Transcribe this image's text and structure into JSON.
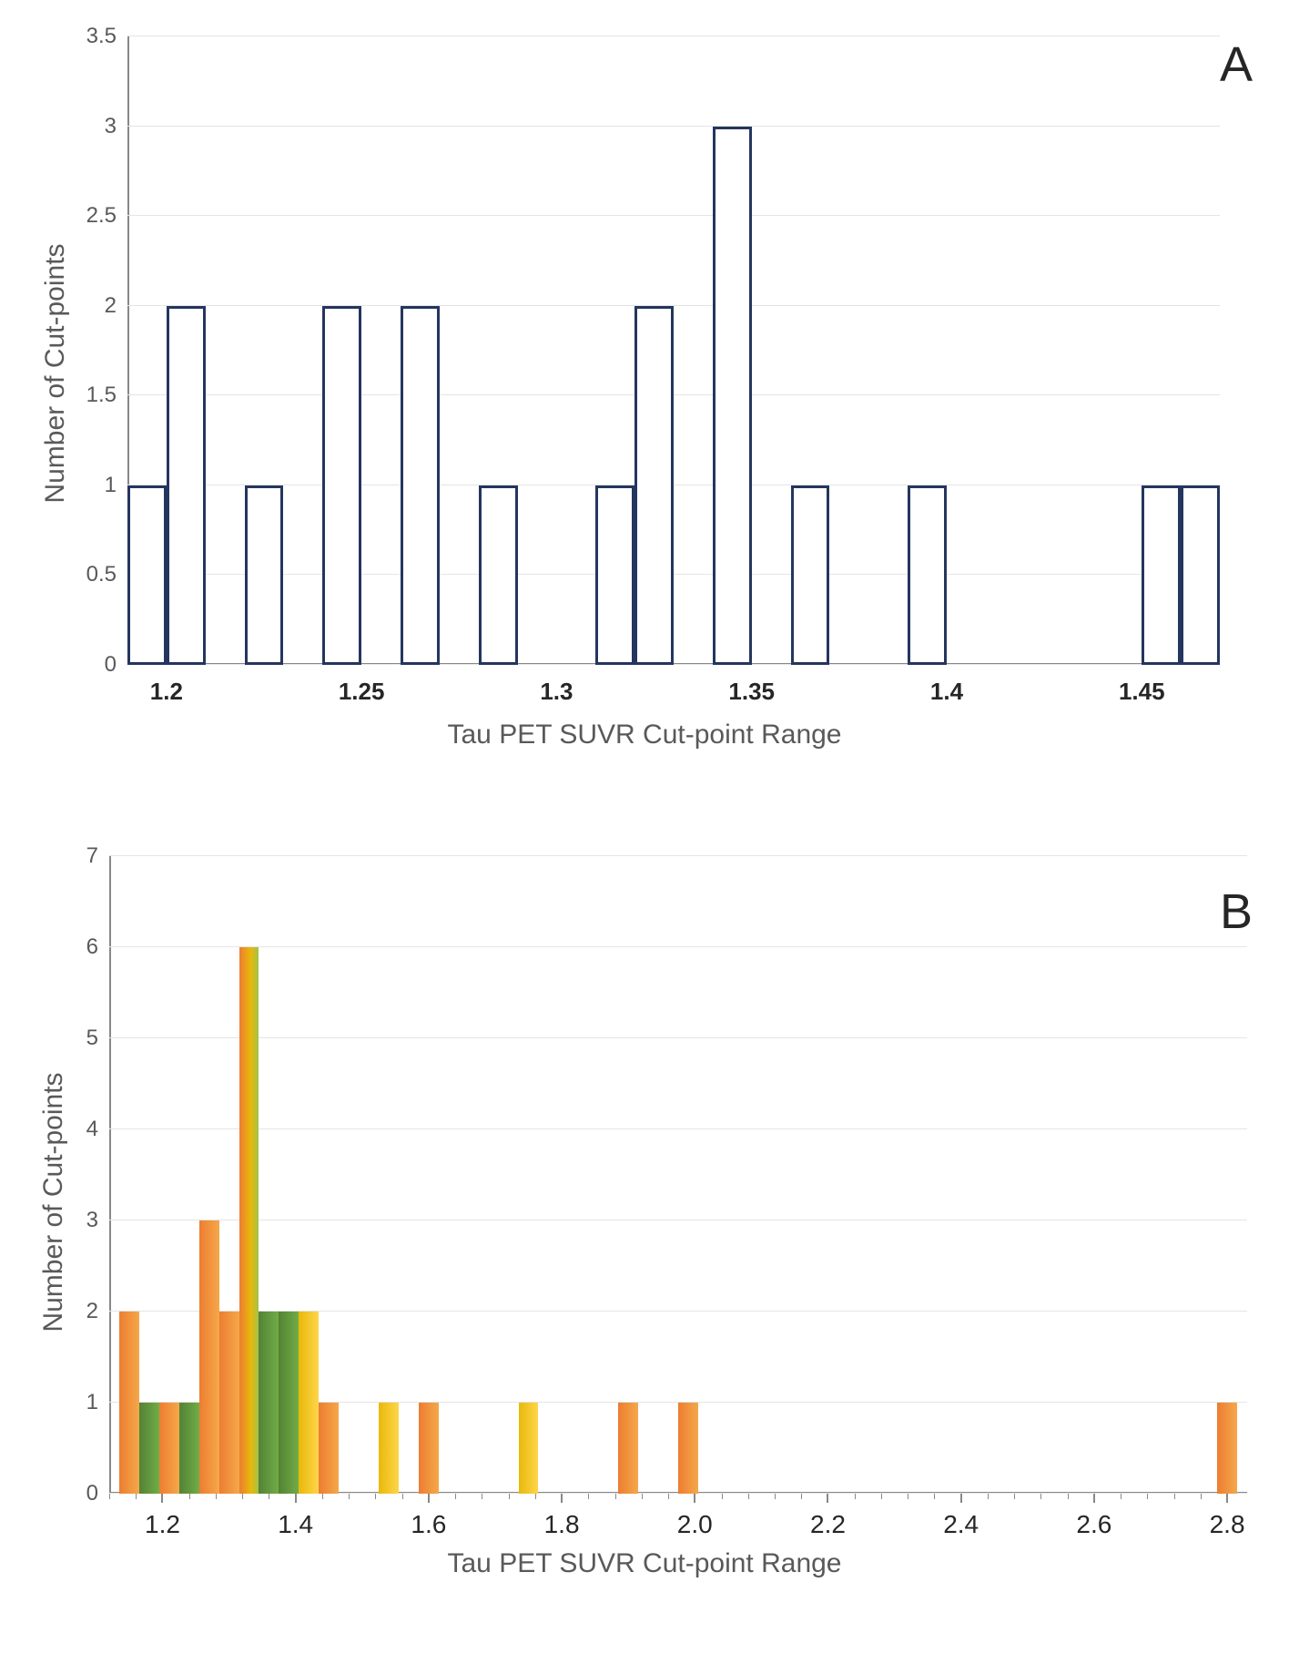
{
  "chartA": {
    "type": "bar",
    "panel_letter": "A",
    "x_axis_title": "Tau PET SUVR Cut-point Range",
    "y_axis_title": "Number of Cut-points",
    "xlim": [
      1.19,
      1.47
    ],
    "ylim": [
      0,
      3.5
    ],
    "ytick_step": 0.5,
    "ytick_labels": [
      "0",
      "0.5",
      "1",
      "1.5",
      "2",
      "2.5",
      "3",
      "3.5"
    ],
    "xtick_positions": [
      1.2,
      1.25,
      1.3,
      1.35,
      1.4,
      1.45
    ],
    "xtick_labels": [
      "1.2",
      "1.25",
      "1.3",
      "1.35",
      "1.4",
      "1.45"
    ],
    "bin_width": 0.01,
    "bar_border_color": "#24365f",
    "bar_fill_color": "#ffffff",
    "bar_border_width": 3,
    "grid_color": "#e5e5e5",
    "axis_color": "#888888",
    "label_color": "#595959",
    "label_fontsize": 24,
    "title_fontsize": 30,
    "bars": [
      {
        "x": 1.19,
        "y": 1
      },
      {
        "x": 1.2,
        "y": 2
      },
      {
        "x": 1.22,
        "y": 1
      },
      {
        "x": 1.24,
        "y": 2
      },
      {
        "x": 1.26,
        "y": 2
      },
      {
        "x": 1.28,
        "y": 1
      },
      {
        "x": 1.31,
        "y": 1
      },
      {
        "x": 1.32,
        "y": 2
      },
      {
        "x": 1.34,
        "y": 3
      },
      {
        "x": 1.36,
        "y": 1
      },
      {
        "x": 1.39,
        "y": 1
      },
      {
        "x": 1.45,
        "y": 1
      },
      {
        "x": 1.46,
        "y": 1
      }
    ]
  },
  "chartB": {
    "type": "bar",
    "panel_letter": "B",
    "x_axis_title": "Tau PET SUVR Cut-point Range",
    "y_axis_title": "Number of Cut-points",
    "xlim": [
      1.12,
      2.83
    ],
    "ylim": [
      0,
      7
    ],
    "ytick_step": 1,
    "ytick_labels": [
      "0",
      "1",
      "2",
      "3",
      "4",
      "5",
      "6",
      "7"
    ],
    "xtick_positions": [
      1.2,
      1.4,
      1.6,
      1.8,
      2.0,
      2.2,
      2.4,
      2.6,
      2.8
    ],
    "xtick_labels": [
      "1.2",
      "1.4",
      "1.6",
      "1.8",
      "2.0",
      "2.2",
      "2.4",
      "2.6",
      "2.8"
    ],
    "xtick_minor_step": 0.04,
    "bin_width": 0.03,
    "grid_color": "#e5e5e5",
    "axis_color": "#888888",
    "label_color": "#595959",
    "label_fontsize": 24,
    "title_fontsize": 30,
    "colors": {
      "orange": "#ed7d31",
      "green": "#70ad47",
      "yellow": "#ffc000"
    },
    "bars": [
      {
        "x": 1.15,
        "y": 2,
        "c": "orange"
      },
      {
        "x": 1.18,
        "y": 1,
        "c": "green"
      },
      {
        "x": 1.21,
        "y": 1,
        "c": "orange"
      },
      {
        "x": 1.24,
        "y": 1,
        "c": "green"
      },
      {
        "x": 1.27,
        "y": 3,
        "c": "orange"
      },
      {
        "x": 1.3,
        "y": 2,
        "c": "orange"
      },
      {
        "x": 1.33,
        "y": 6,
        "c": "mix"
      },
      {
        "x": 1.36,
        "y": 2,
        "c": "green"
      },
      {
        "x": 1.39,
        "y": 2,
        "c": "green"
      },
      {
        "x": 1.42,
        "y": 2,
        "c": "yellow"
      },
      {
        "x": 1.45,
        "y": 1,
        "c": "orange"
      },
      {
        "x": 1.54,
        "y": 1,
        "c": "yellow"
      },
      {
        "x": 1.6,
        "y": 1,
        "c": "orange"
      },
      {
        "x": 1.75,
        "y": 1,
        "c": "yellow"
      },
      {
        "x": 1.9,
        "y": 1,
        "c": "orange"
      },
      {
        "x": 1.99,
        "y": 1,
        "c": "orange"
      },
      {
        "x": 2.8,
        "y": 1,
        "c": "orange"
      }
    ]
  }
}
